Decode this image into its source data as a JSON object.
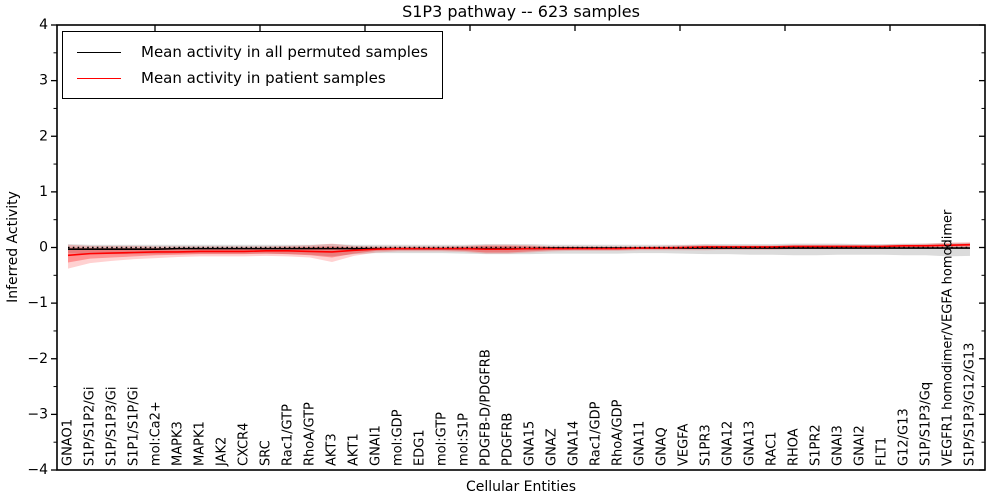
{
  "chart_data": {
    "type": "line",
    "title": "S1P3 pathway -- 623 samples",
    "xlabel": "Cellular Entities",
    "ylabel": "Inferred Activity",
    "ylim": [
      -4,
      4
    ],
    "grid": false,
    "legend_position": "upper left",
    "ytick_values": [
      4,
      3,
      2,
      1,
      0,
      -1,
      -2,
      -3,
      -4
    ],
    "ytick_labels": [
      "4",
      "3",
      "2",
      "1",
      "0",
      "−1",
      "−2",
      "−3",
      "−4"
    ],
    "y_minor_tick_step": 0.5,
    "categories": [
      "GNAO1",
      "S1P/S1P2/Gi",
      "S1P/S1P3/Gi",
      "S1P1/S1P/Gi",
      "mol:Ca2+",
      "MAPK3",
      "MAPK1",
      "JAK2",
      "CXCR4",
      "SRC",
      "Rac1/GTP",
      "RhoA/GTP",
      "AKT3",
      "AKT1",
      "GNAI1",
      "mol:GDP",
      "EDG1",
      "mol:GTP",
      "mol:S1P",
      "PDGFB-D/PDGFRB",
      "PDGFRB",
      "GNA15",
      "GNAZ",
      "GNA14",
      "Rac1/GDP",
      "RhoA/GDP",
      "GNA11",
      "GNAQ",
      "VEGFA",
      "S1PR3",
      "GNA12",
      "GNA13",
      "RAC1",
      "RHOA",
      "S1PR2",
      "GNAI3",
      "GNAI2",
      "FLT1",
      "G12/G13",
      "S1P/S1P3/Gq",
      "VEGFR1 homodimer/VEGFA homodimer",
      "S1P/S1P3/G12/G13"
    ],
    "series": [
      {
        "name": "Mean activity in all permuted samples",
        "color": "#000000",
        "values": [
          -0.03,
          -0.03,
          -0.03,
          -0.03,
          -0.03,
          -0.02,
          -0.02,
          -0.02,
          -0.02,
          -0.02,
          -0.02,
          -0.02,
          -0.02,
          -0.02,
          -0.02,
          -0.02,
          -0.02,
          -0.02,
          -0.02,
          -0.02,
          -0.02,
          -0.02,
          -0.01,
          -0.01,
          -0.01,
          -0.01,
          -0.01,
          -0.01,
          -0.01,
          -0.01,
          -0.01,
          -0.01,
          -0.01,
          -0.01,
          -0.01,
          -0.01,
          -0.01,
          -0.01,
          -0.01,
          -0.01,
          -0.01,
          -0.01
        ]
      },
      {
        "name": "Mean activity in patient samples",
        "color": "#ff0000",
        "values": [
          -0.14,
          -0.11,
          -0.1,
          -0.09,
          -0.08,
          -0.08,
          -0.07,
          -0.07,
          -0.07,
          -0.06,
          -0.06,
          -0.07,
          -0.08,
          -0.05,
          -0.03,
          -0.02,
          -0.02,
          -0.02,
          -0.02,
          -0.03,
          -0.03,
          -0.02,
          -0.02,
          -0.02,
          -0.02,
          -0.02,
          -0.01,
          -0.01,
          0.0,
          0.01,
          0.01,
          0.01,
          0.01,
          0.02,
          0.02,
          0.02,
          0.02,
          0.02,
          0.03,
          0.03,
          0.04,
          0.05
        ]
      }
    ],
    "bands": [
      {
        "name": "permuted-samples-spread",
        "color": "rgba(125,125,125,0.28)",
        "upper": [
          0.06,
          0.05,
          0.05,
          0.05,
          0.05,
          0.05,
          0.05,
          0.05,
          0.05,
          0.05,
          0.05,
          0.05,
          0.06,
          0.05,
          0.05,
          0.05,
          0.05,
          0.05,
          0.05,
          0.06,
          0.06,
          0.06,
          0.05,
          0.05,
          0.05,
          0.05,
          0.05,
          0.05,
          0.05,
          0.06,
          0.06,
          0.06,
          0.06,
          0.07,
          0.07,
          0.07,
          0.06,
          0.06,
          0.07,
          0.07,
          0.08,
          0.08
        ],
        "lower": [
          -0.1,
          -0.12,
          -0.12,
          -0.12,
          -0.12,
          -0.11,
          -0.11,
          -0.11,
          -0.11,
          -0.11,
          -0.12,
          -0.13,
          -0.16,
          -0.12,
          -0.1,
          -0.1,
          -0.1,
          -0.1,
          -0.11,
          -0.12,
          -0.12,
          -0.12,
          -0.11,
          -0.11,
          -0.11,
          -0.11,
          -0.1,
          -0.1,
          -0.11,
          -0.12,
          -0.12,
          -0.13,
          -0.13,
          -0.14,
          -0.14,
          -0.13,
          -0.13,
          -0.13,
          -0.14,
          -0.14,
          -0.16,
          -0.15
        ]
      },
      {
        "name": "patient-samples-spread-outer",
        "color": "rgba(255,0,0,0.18)",
        "upper": [
          0.05,
          0.03,
          0.03,
          0.03,
          0.02,
          0.02,
          0.02,
          0.02,
          0.02,
          0.02,
          0.03,
          0.04,
          0.07,
          0.03,
          0.02,
          0.02,
          0.02,
          0.02,
          0.03,
          0.05,
          0.05,
          0.04,
          0.02,
          0.02,
          0.02,
          0.02,
          0.02,
          0.03,
          0.04,
          0.05,
          0.04,
          0.04,
          0.04,
          0.05,
          0.05,
          0.05,
          0.05,
          0.05,
          0.06,
          0.07,
          0.09,
          0.1
        ],
        "lower": [
          -0.38,
          -0.28,
          -0.24,
          -0.21,
          -0.19,
          -0.17,
          -0.16,
          -0.16,
          -0.16,
          -0.15,
          -0.16,
          -0.18,
          -0.26,
          -0.15,
          -0.09,
          -0.07,
          -0.07,
          -0.07,
          -0.08,
          -0.11,
          -0.11,
          -0.09,
          -0.07,
          -0.06,
          -0.06,
          -0.06,
          -0.05,
          -0.05,
          -0.05,
          -0.05,
          -0.04,
          -0.04,
          -0.04,
          -0.03,
          -0.03,
          -0.03,
          -0.03,
          -0.03,
          -0.02,
          -0.02,
          -0.02,
          -0.03
        ]
      },
      {
        "name": "patient-samples-spread-inner",
        "color": "rgba(255,0,0,0.30)",
        "upper": [
          0.0,
          -0.01,
          -0.01,
          -0.01,
          -0.01,
          -0.01,
          -0.01,
          -0.01,
          -0.01,
          -0.01,
          0.0,
          0.01,
          0.02,
          0.0,
          0.0,
          0.0,
          0.0,
          0.0,
          0.01,
          0.03,
          0.03,
          0.02,
          0.01,
          0.01,
          0.01,
          0.01,
          0.01,
          0.01,
          0.02,
          0.03,
          0.02,
          0.02,
          0.02,
          0.03,
          0.03,
          0.03,
          0.03,
          0.03,
          0.04,
          0.05,
          0.06,
          0.07
        ],
        "lower": [
          -0.27,
          -0.2,
          -0.18,
          -0.16,
          -0.14,
          -0.13,
          -0.12,
          -0.12,
          -0.12,
          -0.11,
          -0.12,
          -0.14,
          -0.18,
          -0.11,
          -0.06,
          -0.05,
          -0.05,
          -0.05,
          -0.06,
          -0.09,
          -0.09,
          -0.07,
          -0.05,
          -0.04,
          -0.04,
          -0.04,
          -0.03,
          -0.03,
          -0.02,
          -0.02,
          -0.01,
          -0.01,
          -0.01,
          0.0,
          0.0,
          0.0,
          0.0,
          0.0,
          0.01,
          0.01,
          0.02,
          0.02
        ]
      }
    ],
    "reference_line": {
      "y": 0,
      "style": "dotted",
      "color": "#000000"
    }
  }
}
